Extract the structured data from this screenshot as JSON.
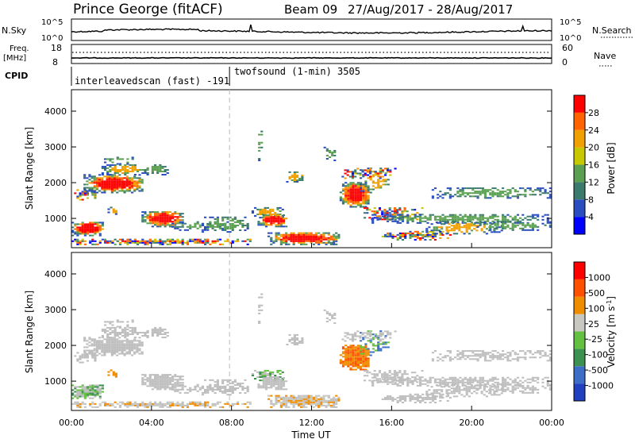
{
  "header": {
    "station": "Prince George (fitACF)",
    "beam": "Beam 09",
    "dates": "27/Aug/2017 - 28/Aug/2017"
  },
  "nsky_panel": {
    "left_label": "N.Sky",
    "tick_top": "10^5",
    "tick_bottom": "10^0",
    "right_label": "N.Search"
  },
  "freq_panel": {
    "left_label_1": "Freq.",
    "left_label_2": "[MHz]",
    "tick_top": "18",
    "tick_bottom": "8",
    "right_tick_top": "60",
    "right_tick_bottom": "0",
    "right_label": "Nave"
  },
  "cpid_panel": {
    "label": "CPID",
    "mode1": "interleavedscan (fast) -191",
    "mode2": "twofsound (1-min) 3505",
    "mode_switch_hour": 7.9
  },
  "chart_data": [
    {
      "type": "heatmap",
      "panel": "power",
      "ylabel": "Slant Range [km]",
      "y_ticks": [
        1000,
        2000,
        3000,
        4000
      ],
      "ylim": [
        180,
        4600
      ],
      "xlim_hours": [
        0,
        24
      ],
      "colorbar_label": "Power [dB]",
      "colorbar_ticks": [
        "28",
        "24",
        "20",
        "16",
        "12",
        "8",
        "4"
      ],
      "colorbar_range": [
        0,
        30
      ]
    },
    {
      "type": "heatmap",
      "panel": "velocity",
      "ylabel": "Slant Range [km]",
      "y_ticks": [
        1000,
        2000,
        3000,
        4000
      ],
      "ylim": [
        180,
        4600
      ],
      "xlim_hours": [
        0,
        24
      ],
      "colorbar_label": "Velocity [m s",
      "colorbar_label_sup": "-1",
      "colorbar_label_end": "]",
      "colorbar_ticks": [
        "1000",
        "500",
        "100",
        "25",
        "-25",
        "-100",
        "-500",
        "-1000"
      ]
    }
  ],
  "x_axis": {
    "tick_labels": [
      "00:00",
      "04:00",
      "08:00",
      "12:00",
      "16:00",
      "20:00",
      "00:00"
    ],
    "label": "Time UT"
  },
  "colors": {
    "power_scale": [
      "#0000ff",
      "#2a4ebf",
      "#3c7a6e",
      "#5aa050",
      "#c8c800",
      "#f0a000",
      "#ff6400",
      "#ff0000"
    ],
    "velocity_scale": [
      "#2040c0",
      "#3c6ec8",
      "#3c9050",
      "#64c040",
      "#c8c8c0",
      "#f08c00",
      "#ff5000",
      "#ff0000"
    ],
    "ground_scatter": "#bebebe"
  }
}
